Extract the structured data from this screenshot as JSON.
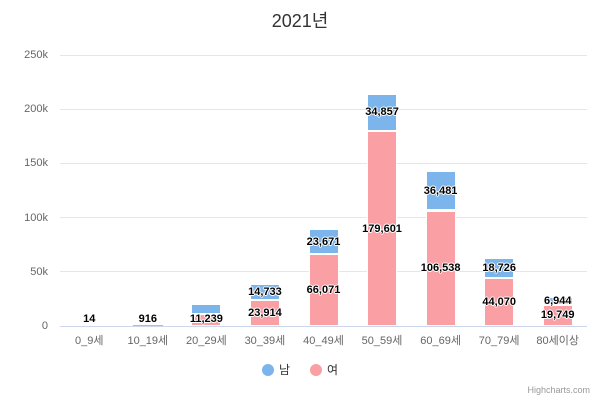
{
  "chart_data": {
    "type": "bar",
    "stacked": true,
    "title": "2021년",
    "categories": [
      "0_9세",
      "10_19세",
      "20_29세",
      "30_39세",
      "40_49세",
      "50_59세",
      "60_69세",
      "70_79세",
      "80세이상"
    ],
    "series": [
      {
        "name": "남",
        "color": "#7cb5ec",
        "values": [
          0,
          0,
          9500,
          14733,
          23671,
          34857,
          36481,
          18726,
          6944
        ],
        "labels": [
          "",
          "",
          "",
          "14,733",
          "23,671",
          "34,857",
          "36,481",
          "18,726",
          "6,944"
        ]
      },
      {
        "name": "여",
        "color": "#faa0a5",
        "values": [
          14,
          916,
          11239,
          23914,
          66071,
          179601,
          106538,
          44070,
          19749
        ],
        "labels": [
          "14",
          "916",
          "11,239",
          "23,914",
          "66,071",
          "179,601",
          "106,538",
          "44,070",
          "19,749"
        ]
      }
    ],
    "xlabel": "",
    "ylabel": "",
    "ylim": [
      0,
      250000
    ],
    "yticks": [
      {
        "value": 0,
        "label": "0"
      },
      {
        "value": 50000,
        "label": "50k"
      },
      {
        "value": 100000,
        "label": "100k"
      },
      {
        "value": 150000,
        "label": "150k"
      },
      {
        "value": 200000,
        "label": "200k"
      },
      {
        "value": 250000,
        "label": "250k"
      }
    ],
    "legend_position": "bottom",
    "grid": true
  },
  "credit": "Highcharts.com",
  "colors": {
    "male": "#7cb5ec",
    "female": "#faa0a5",
    "gridline": "#e6e6e6",
    "axis_line": "#ccd6eb",
    "axis_label_text": "#666666",
    "title_text": "#333333",
    "data_label_text": "#000000",
    "legend_text": "#333333",
    "credit_text": "#999999",
    "background": "#ffffff"
  }
}
